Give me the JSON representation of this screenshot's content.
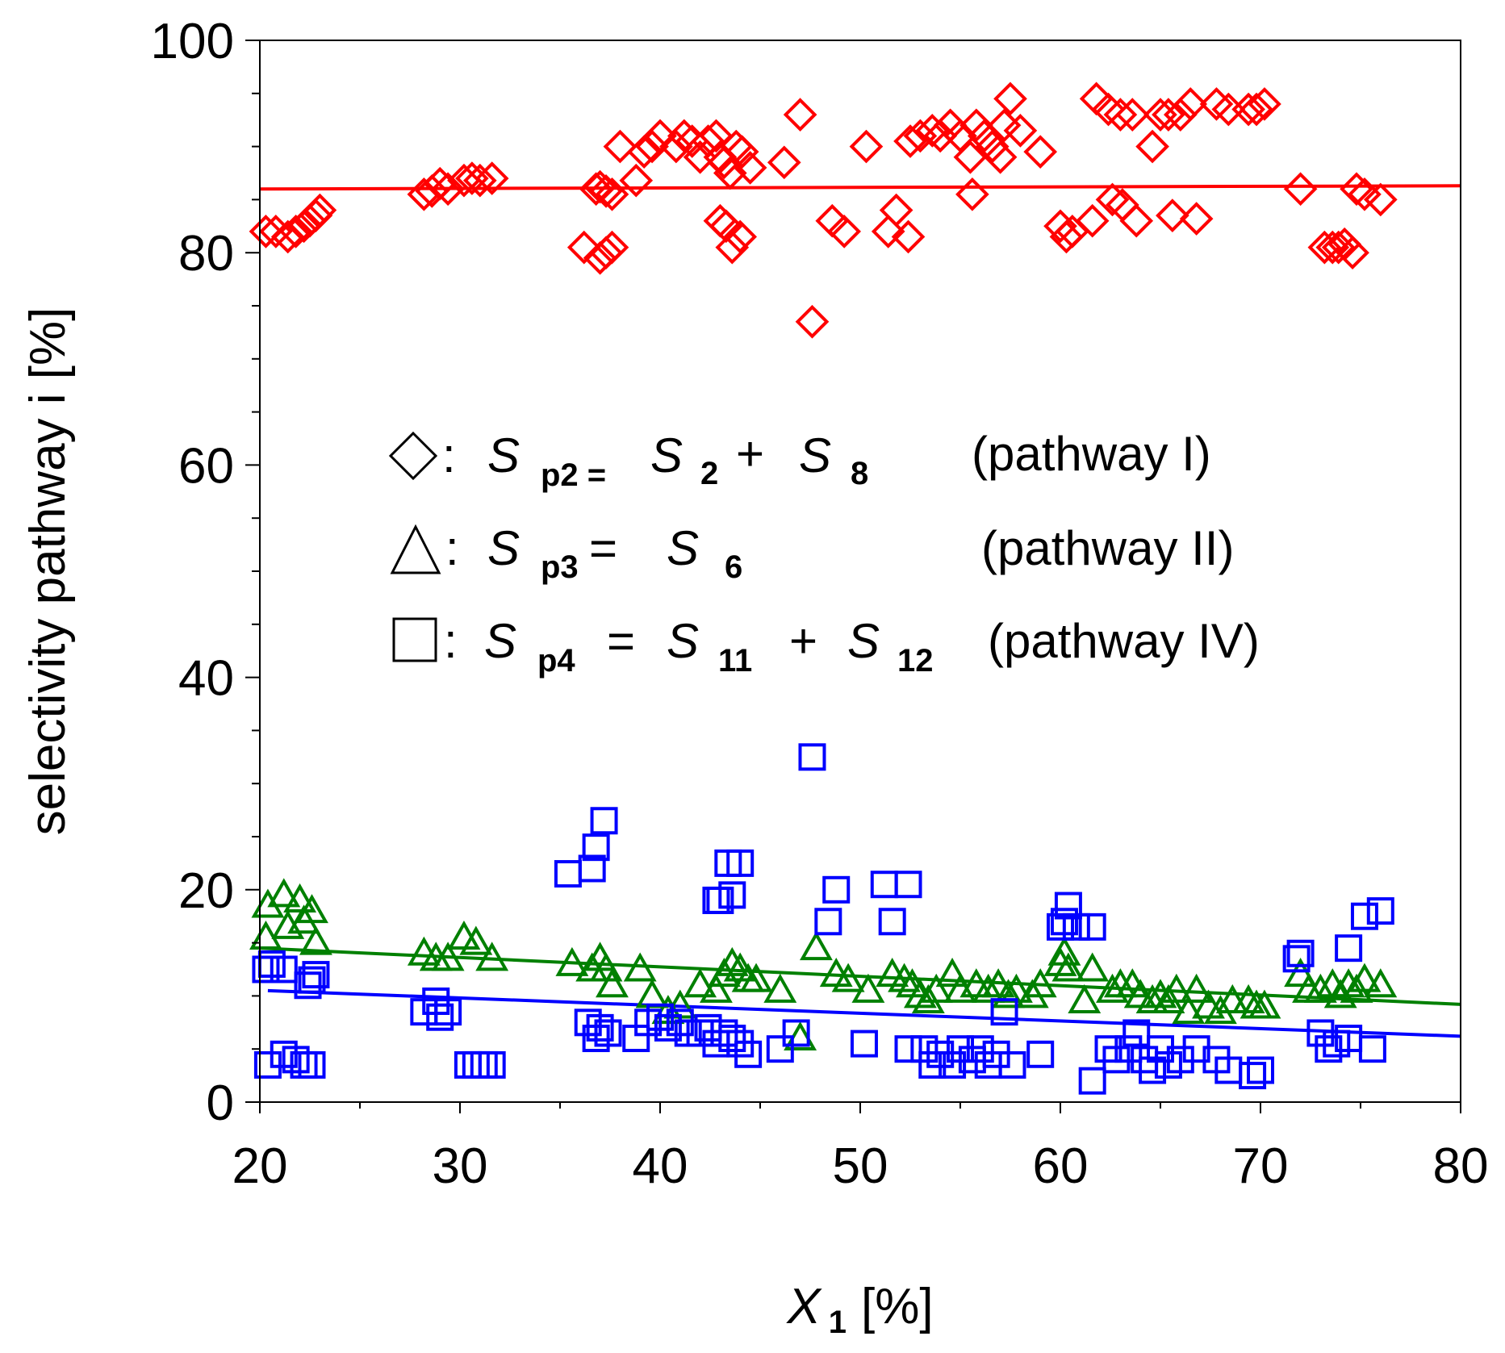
{
  "chart_data": {
    "type": "scatter",
    "xlabel": {
      "var": "X",
      "sub": "1",
      "unit": "[%]"
    },
    "ylabel": "selectivity pathway i [%]",
    "xlim": [
      20,
      80
    ],
    "ylim": [
      0,
      100
    ],
    "xticks": [
      "20",
      "30",
      "40",
      "50",
      "60",
      "70",
      "80"
    ],
    "yticks": [
      "0",
      "20",
      "40",
      "60",
      "80",
      "100"
    ],
    "legend": [
      {
        "marker": "diamond",
        "sym": "◇:",
        "lhs": "S",
        "lhs_sub": "p2 =",
        "rhs": [
          [
            "S",
            "2"
          ],
          [
            "S",
            "8"
          ]
        ],
        "ops": [
          "+"
        ],
        "pathway": "(pathway I)"
      },
      {
        "marker": "triangle",
        "sym": "△:",
        "lhs": "S",
        "lhs_sub": "p3",
        "eq": "=",
        "rhs": [
          [
            "S",
            "6"
          ]
        ],
        "ops": [],
        "pathway": "(pathway II)"
      },
      {
        "marker": "square",
        "sym": "□:",
        "lhs": "S",
        "lhs_sub": "p4",
        "eq": "=",
        "rhs": [
          [
            "S",
            "11"
          ],
          [
            "S",
            "12"
          ]
        ],
        "ops": [
          "+"
        ],
        "pathway": "(pathway IV)"
      }
    ],
    "series": [
      {
        "name": "Sp2 (pathway I)",
        "marker": "diamond",
        "color": "#ff0000",
        "trend": [
          [
            20,
            86.0
          ],
          [
            80,
            86.3
          ]
        ],
        "points": [
          [
            20.3,
            82
          ],
          [
            20.8,
            82
          ],
          [
            21.4,
            81.5
          ],
          [
            21.8,
            82
          ],
          [
            22.2,
            82.5
          ],
          [
            22.5,
            83
          ],
          [
            22.8,
            83.5
          ],
          [
            23.0,
            84
          ],
          [
            28.2,
            85.5
          ],
          [
            28.6,
            85.8
          ],
          [
            29.0,
            86.5
          ],
          [
            29.4,
            86
          ],
          [
            30.2,
            86.8
          ],
          [
            30.6,
            87
          ],
          [
            31.0,
            86.8
          ],
          [
            31.6,
            87
          ],
          [
            36.8,
            86
          ],
          [
            37.0,
            86.2
          ],
          [
            37.3,
            85.8
          ],
          [
            37.6,
            85.5
          ],
          [
            38.0,
            90
          ],
          [
            38.8,
            86.8
          ],
          [
            39.2,
            89.5
          ],
          [
            39.6,
            90
          ],
          [
            40.0,
            91
          ],
          [
            40.8,
            90
          ],
          [
            41.2,
            91
          ],
          [
            41.6,
            90.5
          ],
          [
            42.0,
            89
          ],
          [
            42.4,
            90.5
          ],
          [
            42.8,
            91
          ],
          [
            43.0,
            89
          ],
          [
            43.2,
            88.5
          ],
          [
            43.5,
            87.5
          ],
          [
            43.8,
            90
          ],
          [
            44.1,
            89.5
          ],
          [
            44.5,
            88
          ],
          [
            46.2,
            88.5
          ],
          [
            47.0,
            93
          ],
          [
            50.3,
            90
          ],
          [
            52.5,
            90.5
          ],
          [
            53.0,
            91
          ],
          [
            53.6,
            91.5
          ],
          [
            54.0,
            91
          ],
          [
            54.5,
            92
          ],
          [
            55.0,
            91
          ],
          [
            55.5,
            89
          ],
          [
            55.8,
            92
          ],
          [
            56.2,
            91
          ],
          [
            56.6,
            90
          ],
          [
            57.0,
            89
          ],
          [
            57.2,
            92
          ],
          [
            57.5,
            94.5
          ],
          [
            58.0,
            91.5
          ],
          [
            59.0,
            89.5
          ],
          [
            61.8,
            94.5
          ],
          [
            62.4,
            93.5
          ],
          [
            63.0,
            93
          ],
          [
            63.6,
            93
          ],
          [
            64.6,
            90
          ],
          [
            65.0,
            93
          ],
          [
            65.4,
            93
          ],
          [
            66.0,
            93
          ],
          [
            66.5,
            94
          ],
          [
            67.8,
            94
          ],
          [
            68.4,
            93.5
          ],
          [
            69.4,
            93.5
          ],
          [
            69.8,
            93.5
          ],
          [
            70.2,
            94
          ],
          [
            36.2,
            80.5
          ],
          [
            37.0,
            79.5
          ],
          [
            37.3,
            80
          ],
          [
            37.6,
            80.5
          ],
          [
            43.0,
            83
          ],
          [
            43.3,
            82.5
          ],
          [
            43.6,
            80.5
          ],
          [
            44.0,
            81.5
          ],
          [
            47.6,
            73.5
          ],
          [
            48.6,
            83
          ],
          [
            49.2,
            82
          ],
          [
            51.4,
            82
          ],
          [
            51.8,
            84
          ],
          [
            52.4,
            81.5
          ],
          [
            55.6,
            85.5
          ],
          [
            60.0,
            82.5
          ],
          [
            60.3,
            81.5
          ],
          [
            60.6,
            82
          ],
          [
            61.6,
            83
          ],
          [
            62.6,
            85
          ],
          [
            63.1,
            84.5
          ],
          [
            63.8,
            83
          ],
          [
            65.6,
            83.5
          ],
          [
            66.8,
            83.2
          ],
          [
            72.0,
            86
          ],
          [
            73.2,
            80.5
          ],
          [
            73.6,
            80.5
          ],
          [
            73.9,
            80.5
          ],
          [
            74.2,
            80.8
          ],
          [
            74.6,
            80
          ],
          [
            74.8,
            86
          ],
          [
            75.2,
            85.5
          ],
          [
            76.0,
            85
          ]
        ]
      },
      {
        "name": "Sp3 (pathway II)",
        "marker": "triangle",
        "color": "#008000",
        "trend": [
          [
            20,
            14.5
          ],
          [
            80,
            9.2
          ]
        ],
        "points": [
          [
            20.3,
            15.5
          ],
          [
            20.4,
            18.5
          ],
          [
            21.2,
            19.5
          ],
          [
            21.4,
            16.5
          ],
          [
            22.0,
            19
          ],
          [
            22.2,
            17
          ],
          [
            22.6,
            18
          ],
          [
            22.8,
            15
          ],
          [
            28.2,
            14
          ],
          [
            28.8,
            13.5
          ],
          [
            29.4,
            13.5
          ],
          [
            30.2,
            15.5
          ],
          [
            30.8,
            15
          ],
          [
            31.6,
            13.5
          ],
          [
            35.6,
            13
          ],
          [
            36.6,
            12.5
          ],
          [
            37.0,
            13.5
          ],
          [
            37.3,
            12.5
          ],
          [
            37.6,
            11
          ],
          [
            39.0,
            12.5
          ],
          [
            39.6,
            10
          ],
          [
            40.4,
            8.5
          ],
          [
            41.0,
            9
          ],
          [
            42.0,
            11
          ],
          [
            42.8,
            10.5
          ],
          [
            43.2,
            12
          ],
          [
            43.6,
            13
          ],
          [
            44.0,
            12.5
          ],
          [
            44.4,
            11.5
          ],
          [
            44.8,
            11.5
          ],
          [
            46.0,
            10.5
          ],
          [
            47.0,
            6
          ],
          [
            47.8,
            14.5
          ],
          [
            48.8,
            12
          ],
          [
            49.4,
            11.5
          ],
          [
            50.4,
            10.5
          ],
          [
            51.6,
            12
          ],
          [
            52.2,
            11.5
          ],
          [
            52.6,
            11
          ],
          [
            53.0,
            10
          ],
          [
            53.4,
            9.5
          ],
          [
            53.8,
            10.5
          ],
          [
            54.6,
            12
          ],
          [
            55.0,
            10.5
          ],
          [
            55.8,
            11
          ],
          [
            56.4,
            10.5
          ],
          [
            56.9,
            11
          ],
          [
            57.4,
            10
          ],
          [
            57.8,
            10.5
          ],
          [
            58.6,
            10
          ],
          [
            59.0,
            11
          ],
          [
            60.0,
            13
          ],
          [
            60.2,
            14
          ],
          [
            60.4,
            12.5
          ],
          [
            61.2,
            9.5
          ],
          [
            61.6,
            12.5
          ],
          [
            62.6,
            10.5
          ],
          [
            63.0,
            11
          ],
          [
            63.6,
            11
          ],
          [
            64.0,
            10
          ],
          [
            64.6,
            9.5
          ],
          [
            65.0,
            10
          ],
          [
            65.4,
            9.5
          ],
          [
            65.8,
            10.5
          ],
          [
            66.4,
            8.5
          ],
          [
            66.8,
            10.5
          ],
          [
            67.4,
            9
          ],
          [
            68.0,
            8.5
          ],
          [
            68.6,
            9.5
          ],
          [
            69.4,
            9.5
          ],
          [
            69.8,
            9
          ],
          [
            70.2,
            9
          ],
          [
            72.0,
            12
          ],
          [
            72.4,
            10.5
          ],
          [
            73.0,
            10.5
          ],
          [
            73.6,
            11
          ],
          [
            74.0,
            10
          ],
          [
            74.4,
            11
          ],
          [
            74.8,
            10.5
          ],
          [
            75.2,
            11.5
          ],
          [
            76.0,
            11
          ]
        ]
      },
      {
        "name": "Sp4 (pathway IV)",
        "marker": "square",
        "color": "#0000ff",
        "trend": [
          [
            20.4,
            10.5
          ],
          [
            80,
            6.2
          ]
        ],
        "points": [
          [
            20.3,
            12.5
          ],
          [
            20.6,
            13
          ],
          [
            21.2,
            12.5
          ],
          [
            22.4,
            11
          ],
          [
            22.6,
            11.5
          ],
          [
            22.8,
            12
          ],
          [
            20.4,
            3.5
          ],
          [
            21.2,
            4.5
          ],
          [
            21.8,
            4
          ],
          [
            22.2,
            3.5
          ],
          [
            22.6,
            3.5
          ],
          [
            28.2,
            8.5
          ],
          [
            28.8,
            9.5
          ],
          [
            29.0,
            8
          ],
          [
            29.4,
            8.5
          ],
          [
            30.4,
            3.5
          ],
          [
            30.8,
            3.5
          ],
          [
            31.2,
            3.5
          ],
          [
            31.6,
            3.5
          ],
          [
            35.4,
            21.5
          ],
          [
            36.6,
            22
          ],
          [
            36.8,
            24
          ],
          [
            37.2,
            26.5
          ],
          [
            36.4,
            7.5
          ],
          [
            36.8,
            6
          ],
          [
            37.0,
            7
          ],
          [
            37.4,
            6.5
          ],
          [
            38.8,
            6
          ],
          [
            39.4,
            7.5
          ],
          [
            40.0,
            8
          ],
          [
            40.4,
            7
          ],
          [
            41.0,
            7.5
          ],
          [
            41.4,
            6.5
          ],
          [
            42.0,
            6.5
          ],
          [
            42.4,
            7
          ],
          [
            42.8,
            5.5
          ],
          [
            43.2,
            6.5
          ],
          [
            43.6,
            6
          ],
          [
            44.0,
            5.5
          ],
          [
            44.4,
            4.5
          ],
          [
            42.8,
            19
          ],
          [
            43.0,
            19
          ],
          [
            43.4,
            22.5
          ],
          [
            43.6,
            19.5
          ],
          [
            44.0,
            22.5
          ],
          [
            46.0,
            5
          ],
          [
            46.8,
            6.5
          ],
          [
            47.6,
            32.5
          ],
          [
            48.4,
            17
          ],
          [
            48.8,
            20
          ],
          [
            50.2,
            5.5
          ],
          [
            51.2,
            20.5
          ],
          [
            51.6,
            17
          ],
          [
            52.4,
            20.5
          ],
          [
            52.4,
            5
          ],
          [
            53.2,
            5
          ],
          [
            53.6,
            3.5
          ],
          [
            54.0,
            4.5
          ],
          [
            54.6,
            3.5
          ],
          [
            55.0,
            5
          ],
          [
            55.6,
            4
          ],
          [
            56.0,
            5
          ],
          [
            56.4,
            3.5
          ],
          [
            56.8,
            4.5
          ],
          [
            57.2,
            8.5
          ],
          [
            57.6,
            3.5
          ],
          [
            59.0,
            4.5
          ],
          [
            60.0,
            16.5
          ],
          [
            60.2,
            17
          ],
          [
            60.4,
            18.5
          ],
          [
            60.8,
            16.5
          ],
          [
            61.6,
            16.5
          ],
          [
            61.6,
            2
          ],
          [
            62.4,
            5
          ],
          [
            62.8,
            4
          ],
          [
            63.4,
            5
          ],
          [
            63.8,
            6.5
          ],
          [
            64.2,
            4
          ],
          [
            64.6,
            3
          ],
          [
            65.0,
            5
          ],
          [
            65.4,
            3.5
          ],
          [
            66.0,
            4
          ],
          [
            66.8,
            5
          ],
          [
            67.8,
            4
          ],
          [
            68.4,
            3
          ],
          [
            69.6,
            2.5
          ],
          [
            70.0,
            3
          ],
          [
            71.8,
            13.5
          ],
          [
            72.0,
            14
          ],
          [
            73.0,
            6.5
          ],
          [
            73.4,
            5
          ],
          [
            73.8,
            5.5
          ],
          [
            74.4,
            6
          ],
          [
            74.4,
            14.5
          ],
          [
            75.2,
            17.5
          ],
          [
            75.6,
            5
          ],
          [
            76.0,
            18
          ]
        ]
      }
    ]
  }
}
